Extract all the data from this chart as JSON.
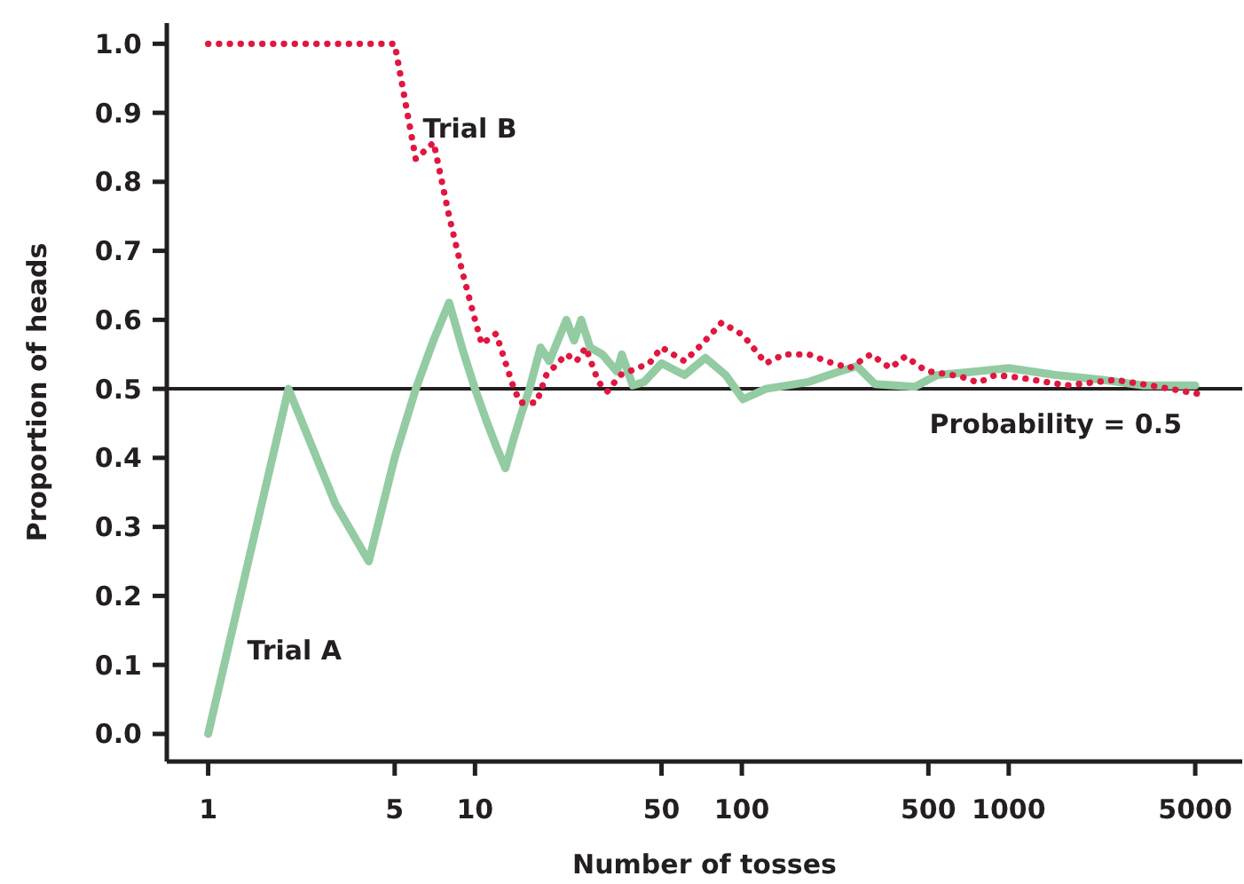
{
  "chart_data": {
    "type": "line",
    "xlabel": "Number of tosses",
    "ylabel": "Proportion of heads",
    "log": "x",
    "xlim": [
      0.7,
      7500
    ],
    "xticks": [
      1,
      5,
      10,
      50,
      100,
      500,
      1000,
      5000
    ],
    "ylim": [
      -0.04,
      1.03
    ],
    "yticks": [
      {
        "value": 0,
        "label": "0.0"
      },
      0.1,
      0.2,
      0.3,
      0.4,
      0.5,
      0.6,
      0.7,
      0.8,
      0.9,
      {
        "value": 1,
        "label": "1.0"
      }
    ],
    "grid": false,
    "ref_lines": [
      {
        "axis": "y",
        "value": 0.5,
        "label": "Probability = 0.5",
        "color": "#231f20"
      }
    ],
    "series": [
      {
        "name": "Trial A",
        "color": "#93cba3",
        "line_style": "solid",
        "x": [
          1,
          2,
          3,
          4,
          5,
          6,
          7,
          8,
          9,
          10,
          11,
          12,
          13,
          14,
          15,
          16,
          17.6,
          19,
          22,
          23.5,
          25,
          27,
          30,
          34,
          35.5,
          39,
          43,
          50,
          61,
          73,
          87,
          101,
          123,
          178,
          227,
          270,
          315,
          445,
          540,
          700,
          1000,
          1500,
          2250,
          3200,
          5000
        ],
        "values": [
          0,
          0.5,
          0.333,
          0.25,
          0.4,
          0.5,
          0.571,
          0.625,
          0.556,
          0.5,
          0.455,
          0.417,
          0.385,
          0.429,
          0.467,
          0.5,
          0.56,
          0.54,
          0.6,
          0.57,
          0.6,
          0.56,
          0.55,
          0.525,
          0.55,
          0.505,
          0.51,
          0.537,
          0.52,
          0.545,
          0.52,
          0.485,
          0.5,
          0.51,
          0.524,
          0.533,
          0.507,
          0.503,
          0.52,
          0.524,
          0.53,
          0.52,
          0.513,
          0.505,
          0.505
        ]
      },
      {
        "name": "Trial B",
        "color": "#e0173f",
        "line_style": "dotted",
        "x": [
          1,
          2,
          3,
          4,
          5,
          6,
          7,
          8,
          9,
          10,
          10.6,
          12,
          14,
          14.8,
          17,
          18.5,
          22,
          24,
          26,
          29,
          31.3,
          35,
          45,
          50,
          61,
          71,
          84,
          101,
          123,
          144,
          178,
          208,
          253,
          304,
          360,
          410,
          490,
          660,
          770,
          890,
          1110,
          1650,
          2500,
          3390,
          5100
        ],
        "values": [
          1,
          1,
          1,
          1,
          1,
          0.833,
          0.857,
          0.75,
          0.667,
          0.6,
          0.565,
          0.58,
          0.5,
          0.48,
          0.48,
          0.52,
          0.55,
          0.54,
          0.56,
          0.51,
          0.496,
          0.52,
          0.537,
          0.56,
          0.54,
          0.565,
          0.596,
          0.578,
          0.537,
          0.55,
          0.55,
          0.54,
          0.53,
          0.55,
          0.53,
          0.547,
          0.526,
          0.518,
          0.509,
          0.52,
          0.516,
          0.505,
          0.513,
          0.505,
          0.493
        ]
      }
    ]
  }
}
